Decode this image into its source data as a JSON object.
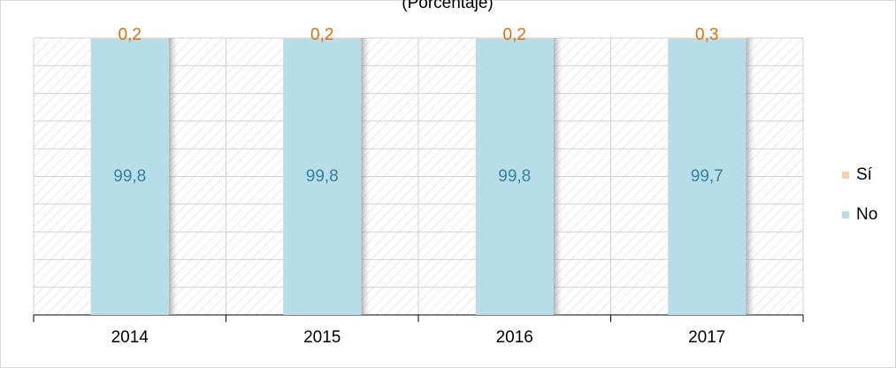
{
  "chart_data": {
    "type": "stacked-bar",
    "subtitle": "(Porcentaje)",
    "categories": [
      "2014",
      "2015",
      "2016",
      "2017"
    ],
    "series": [
      {
        "name": "No",
        "color": "#b7dde8",
        "label_color": "#31849b",
        "values": [
          99.8,
          99.8,
          99.8,
          99.7
        ],
        "value_labels": [
          "99,8",
          "99,8",
          "99,8",
          "99,7"
        ]
      },
      {
        "name": "Sí",
        "color": "#fbcfae",
        "label_color": "#e46c0a",
        "values": [
          0.2,
          0.2,
          0.2,
          0.3
        ],
        "value_labels": [
          "0,2",
          "0,2",
          "0,2",
          "0,3"
        ]
      }
    ],
    "ylim": [
      0,
      100
    ],
    "yticks": [
      0,
      10,
      20,
      30,
      40,
      50,
      60,
      70,
      80,
      90,
      100
    ],
    "grid": true,
    "legend": "right"
  }
}
